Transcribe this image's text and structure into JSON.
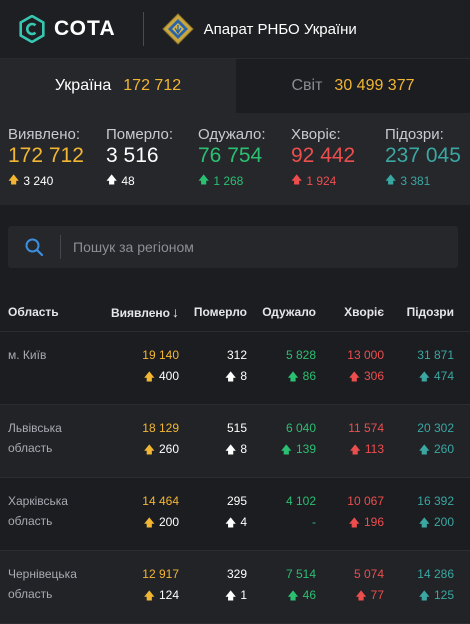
{
  "header": {
    "logo_text": "СОТА",
    "org_name": "Апарат РНБО України"
  },
  "tabs": [
    {
      "label": "Україна",
      "value": "172 712"
    },
    {
      "label": "Світ",
      "value": "30 499 377"
    }
  ],
  "stats": [
    {
      "label": "Виявлено:",
      "value": "172 712",
      "delta": "3 240",
      "color": "#f2b632"
    },
    {
      "label": "Померло:",
      "value": "3 516",
      "delta": "48",
      "color": "#ffffff"
    },
    {
      "label": "Одужало:",
      "value": "76 754",
      "delta": "1 268",
      "color": "#2bbf72"
    },
    {
      "label": "Хворіє:",
      "value": "92 442",
      "delta": "1 924",
      "color": "#ec4e4e"
    },
    {
      "label": "Підозри:",
      "value": "237 045",
      "delta": "3 381",
      "color": "#3aa7a2"
    }
  ],
  "search": {
    "placeholder": "Пошук за регіоном"
  },
  "table": {
    "headers": {
      "region": "Область",
      "detected": "Виявлено",
      "sort_arrow": "↓",
      "died": "Померло",
      "recovered": "Одужало",
      "sick": "Хворіє",
      "suspected": "Підозри"
    },
    "rows": [
      {
        "region_line1": "м. Київ",
        "region_line2": "",
        "detected": "19 140",
        "detected_delta": "400",
        "died": "312",
        "died_delta": "8",
        "recovered": "5 828",
        "recovered_delta": "86",
        "sick": "13 000",
        "sick_delta": "306",
        "suspected": "31 871",
        "suspected_delta": "474"
      },
      {
        "region_line1": "Львівська",
        "region_line2": "область",
        "detected": "18 129",
        "detected_delta": "260",
        "died": "515",
        "died_delta": "8",
        "recovered": "6 040",
        "recovered_delta": "139",
        "sick": "11 574",
        "sick_delta": "113",
        "suspected": "20 302",
        "suspected_delta": "260"
      },
      {
        "region_line1": "Харківська",
        "region_line2": "область",
        "detected": "14 464",
        "detected_delta": "200",
        "died": "295",
        "died_delta": "4",
        "recovered": "4 102",
        "recovered_delta": "-",
        "sick": "10 067",
        "sick_delta": "196",
        "suspected": "16 392",
        "suspected_delta": "200"
      },
      {
        "region_line1": "Чернівецька",
        "region_line2": "область",
        "detected": "12 917",
        "detected_delta": "124",
        "died": "329",
        "died_delta": "1",
        "recovered": "7 514",
        "recovered_delta": "46",
        "sick": "5 074",
        "sick_delta": "77",
        "suspected": "14 286",
        "suspected_delta": "125"
      }
    ]
  }
}
